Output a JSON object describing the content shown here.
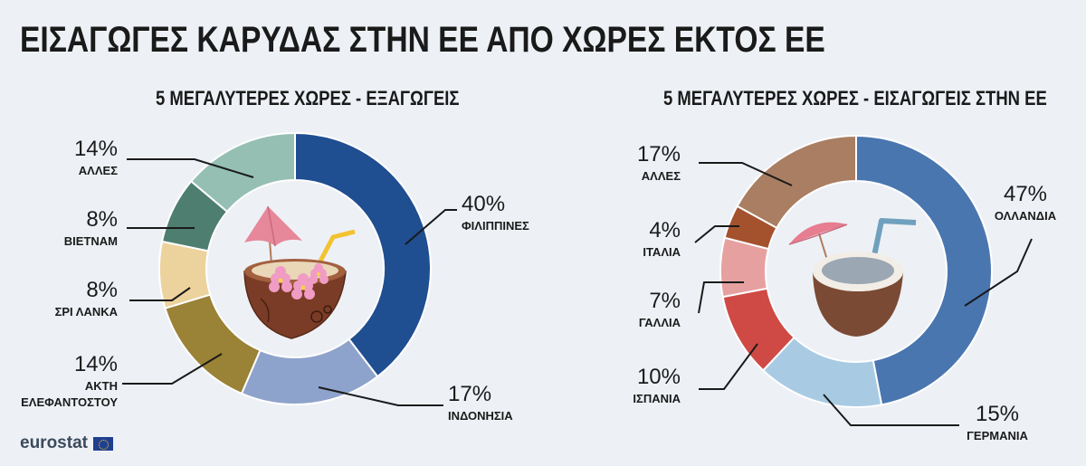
{
  "title": "ΕΙΣΑΓΩΓΕΣ ΚΑΡΥΔΑΣ ΣΤΗΝ ΕΕ ΑΠΟ ΧΩΡΕΣ ΕΚΤΟΣ ΕΕ",
  "footer": {
    "brand": "eurostat",
    "flag_icon": "eu-flag-icon"
  },
  "chart_data": [
    {
      "type": "pie",
      "donut": true,
      "title": "5 ΜΕΓΑΛΥΤΕΡΕΣ ΧΩΡΕΣ - ΕΞΑΓΩΓΕΙΣ",
      "center_icon": "coconut-drink-with-flowers-icon",
      "slices": [
        {
          "label": "ΦΙΛΙΠΠΙΝΕΣ",
          "value": 40,
          "pct_label": "40%",
          "color": "#1f4e91"
        },
        {
          "label": "ΙΝΔΟΝΗΣΙΑ",
          "value": 17,
          "pct_label": "17%",
          "color": "#8ea3cb"
        },
        {
          "label": "ΑΚΤΗ ΕΛΕΦΑΝΤΟΣΤΟΥ",
          "label_lines": [
            "ΑΚΤΗ",
            "ΕΛΕΦΑΝΤΟΣΤΟΥ"
          ],
          "value": 14,
          "pct_label": "14%",
          "color": "#9a8236"
        },
        {
          "label": "ΣΡΙ ΛΑΝΚΑ",
          "value": 8,
          "pct_label": "8%",
          "color": "#ecd29c"
        },
        {
          "label": "ΒΙΕΤΝΑΜ",
          "value": 8,
          "pct_label": "8%",
          "color": "#4e7e70"
        },
        {
          "label": "ΑΛΛΕΣ",
          "value": 14,
          "pct_label": "14%",
          "color": "#95bfb3"
        }
      ]
    },
    {
      "type": "pie",
      "donut": true,
      "title": "5 ΜΕΓΑΛΥΤΕΡΕΣ ΧΩΡΕΣ - ΕΙΣΑΓΩΓΕΙΣ ΣΤΗΝ ΕΕ",
      "center_icon": "coconut-drink-with-umbrella-icon",
      "slices": [
        {
          "label": "ΟΛΛΑΝΔΙΑ",
          "value": 47,
          "pct_label": "47%",
          "color": "#4a76b0"
        },
        {
          "label": "ΓΕΡΜΑΝΙΑ",
          "value": 15,
          "pct_label": "15%",
          "color": "#a8cbe3"
        },
        {
          "label": "ΙΣΠΑΝΙΑ",
          "value": 10,
          "pct_label": "10%",
          "color": "#cf4a45"
        },
        {
          "label": "ΓΑΛΛΙΑ",
          "value": 7,
          "pct_label": "7%",
          "color": "#e6a0a0"
        },
        {
          "label": "ΙΤΑΛΙΑ",
          "value": 4,
          "pct_label": "4%",
          "color": "#a3522d"
        },
        {
          "label": "ΑΛΛΕΣ",
          "value": 17,
          "pct_label": "17%",
          "color": "#a97e62"
        }
      ]
    }
  ]
}
